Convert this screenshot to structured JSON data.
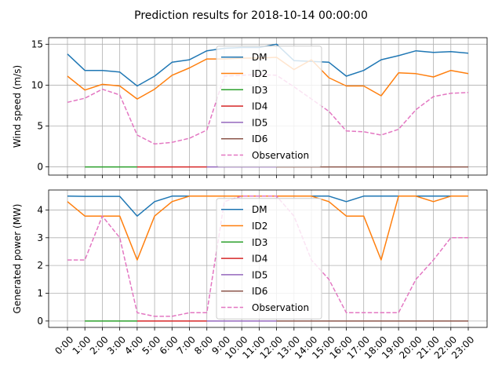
{
  "title": "Prediction results for 2018-10-14 00:00:00",
  "colors": {
    "DM": "#1f77b4",
    "ID2": "#ff7f0e",
    "ID3": "#2ca02c",
    "ID4": "#d62728",
    "ID5": "#9467bd",
    "ID6": "#8c564b",
    "Observation": "#e377c2"
  },
  "chart_data": [
    {
      "type": "line",
      "ylabel": "Wind speed (m/s)",
      "ylim": [
        -1,
        15.8
      ],
      "yticks": [
        "0",
        "5",
        "10",
        "15"
      ],
      "grid": true,
      "legend": "center",
      "x": [
        "0:00",
        "1:00",
        "2:00",
        "3:00",
        "4:00",
        "5:00",
        "6:00",
        "7:00",
        "8:00",
        "9:00",
        "10:00",
        "11:00",
        "12:00",
        "13:00",
        "14:00",
        "15:00",
        "16:00",
        "17:00",
        "18:00",
        "19:00",
        "20:00",
        "21:00",
        "22:00",
        "23:00"
      ],
      "series": [
        {
          "name": "DM",
          "style": "solid",
          "values": [
            13.8,
            11.8,
            11.8,
            11.6,
            9.9,
            11.1,
            12.8,
            13.1,
            14.2,
            14.5,
            14.6,
            14.6,
            15.0,
            13.0,
            12.9,
            12.8,
            11.1,
            11.8,
            13.1,
            13.6,
            14.2,
            14.0,
            14.1,
            13.9
          ]
        },
        {
          "name": "ID2",
          "style": "solid",
          "values": [
            11.1,
            9.4,
            10.1,
            9.9,
            8.3,
            9.5,
            11.2,
            12.1,
            13.2,
            13.2,
            13.3,
            13.3,
            13.4,
            11.9,
            13.1,
            10.9,
            9.9,
            9.9,
            8.7,
            11.5,
            11.4,
            11.0,
            11.8,
            11.4
          ]
        },
        {
          "name": "ID3",
          "style": "solid",
          "values": [
            null,
            0,
            0,
            0,
            0,
            null,
            null,
            null,
            null,
            null,
            null,
            null,
            null,
            null,
            null,
            null,
            null,
            null,
            null,
            null,
            null,
            null,
            null,
            null
          ]
        },
        {
          "name": "ID4",
          "style": "solid",
          "values": [
            null,
            null,
            null,
            null,
            0,
            0,
            0,
            0,
            0,
            null,
            null,
            null,
            null,
            null,
            null,
            null,
            null,
            null,
            null,
            null,
            null,
            null,
            null,
            null
          ]
        },
        {
          "name": "ID5",
          "style": "solid",
          "values": [
            null,
            null,
            null,
            null,
            null,
            null,
            null,
            null,
            0,
            0,
            0,
            0,
            0,
            null,
            null,
            null,
            null,
            null,
            null,
            null,
            null,
            null,
            null,
            null
          ]
        },
        {
          "name": "ID6",
          "style": "solid",
          "values": [
            null,
            null,
            null,
            null,
            null,
            null,
            null,
            null,
            null,
            null,
            null,
            null,
            0,
            0,
            0,
            0,
            0,
            0,
            0,
            0,
            0,
            0,
            0,
            0
          ]
        },
        {
          "name": "Observation",
          "style": "dashed",
          "values": [
            7.9,
            8.4,
            9.5,
            8.8,
            3.9,
            2.8,
            3.0,
            3.5,
            4.5,
            11.1,
            11.2,
            11.3,
            11.2,
            9.8,
            8.3,
            6.8,
            4.4,
            4.3,
            3.9,
            4.6,
            7.0,
            8.6,
            9.0,
            9.1
          ]
        }
      ]
    },
    {
      "type": "line",
      "ylabel": "Generated power (MW)",
      "ylim": [
        -0.23,
        4.72
      ],
      "yticks": [
        "0",
        "1",
        "2",
        "3",
        "4"
      ],
      "grid": true,
      "legend": "center",
      "x": [
        "0:00",
        "1:00",
        "2:00",
        "3:00",
        "4:00",
        "5:00",
        "6:00",
        "7:00",
        "8:00",
        "9:00",
        "10:00",
        "11:00",
        "12:00",
        "13:00",
        "14:00",
        "15:00",
        "16:00",
        "17:00",
        "18:00",
        "19:00",
        "20:00",
        "21:00",
        "22:00",
        "23:00"
      ],
      "series": [
        {
          "name": "DM",
          "style": "solid",
          "values": [
            4.5,
            4.49,
            4.49,
            4.49,
            3.78,
            4.3,
            4.5,
            4.5,
            4.5,
            4.5,
            4.5,
            4.5,
            4.5,
            4.5,
            4.5,
            4.5,
            4.3,
            4.5,
            4.5,
            4.5,
            4.5,
            4.5,
            4.5,
            4.5
          ]
        },
        {
          "name": "ID2",
          "style": "solid",
          "values": [
            4.3,
            3.78,
            3.78,
            3.78,
            2.2,
            3.78,
            4.3,
            4.5,
            4.5,
            4.5,
            4.5,
            4.5,
            4.5,
            4.5,
            4.5,
            4.3,
            3.78,
            3.78,
            2.2,
            4.5,
            4.5,
            4.3,
            4.5,
            4.5
          ]
        },
        {
          "name": "ID3",
          "style": "solid",
          "values": [
            null,
            0,
            0,
            0,
            0,
            null,
            null,
            null,
            null,
            null,
            null,
            null,
            null,
            null,
            null,
            null,
            null,
            null,
            null,
            null,
            null,
            null,
            null,
            null
          ]
        },
        {
          "name": "ID4",
          "style": "solid",
          "values": [
            null,
            null,
            null,
            null,
            0,
            0,
            0,
            0,
            0,
            null,
            null,
            null,
            null,
            null,
            null,
            null,
            null,
            null,
            null,
            null,
            null,
            null,
            null,
            null
          ]
        },
        {
          "name": "ID5",
          "style": "solid",
          "values": [
            null,
            null,
            null,
            null,
            null,
            null,
            null,
            null,
            0,
            0,
            0,
            0,
            0,
            null,
            null,
            null,
            null,
            null,
            null,
            null,
            null,
            null,
            null,
            null
          ]
        },
        {
          "name": "ID6",
          "style": "solid",
          "values": [
            null,
            null,
            null,
            null,
            null,
            null,
            null,
            null,
            null,
            null,
            null,
            null,
            0,
            0,
            0,
            0,
            0,
            0,
            0,
            0,
            0,
            0,
            0,
            0
          ]
        },
        {
          "name": "Observation",
          "style": "dashed",
          "values": [
            2.2,
            2.2,
            3.78,
            3.0,
            0.3,
            0.17,
            0.17,
            0.3,
            0.3,
            4.3,
            4.5,
            4.5,
            4.5,
            3.78,
            2.2,
            1.5,
            0.3,
            0.3,
            0.3,
            0.3,
            1.5,
            2.2,
            3.0,
            3.0
          ]
        }
      ]
    }
  ]
}
